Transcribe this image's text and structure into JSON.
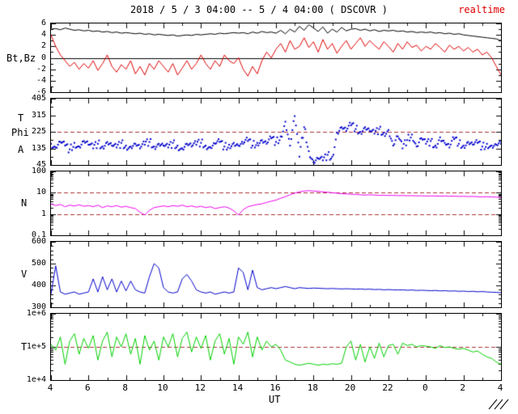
{
  "header": {
    "title": "2018 / 5 / 3  04:00 --  5 / 4  04:00 ( DSCOVR )",
    "realtime_label": "realtime"
  },
  "colors": {
    "bt": "#000000",
    "bz": "#dd0000",
    "phi": "#0000cc",
    "n": "#ee00ee",
    "v": "#0000cc",
    "t": "#00d000",
    "ref": "#aa3333",
    "axis": "#000000",
    "realtime": "#dd0000"
  },
  "chart_data": {
    "type": "line",
    "title": "2018 / 5 / 3 04:00 -- 5 / 4 04:00 ( DSCOVR )",
    "source_label": "DSCOVR",
    "xlabel": "UT",
    "x_start": 4,
    "x_step": 0.25,
    "x_end": 28,
    "xticks": [
      {
        "v": 4,
        "label": "4"
      },
      {
        "v": 6,
        "label": "6"
      },
      {
        "v": 8,
        "label": "8"
      },
      {
        "v": 10,
        "label": "10"
      },
      {
        "v": 12,
        "label": "12"
      },
      {
        "v": 14,
        "label": "14"
      },
      {
        "v": 16,
        "label": "16"
      },
      {
        "v": 18,
        "label": "18"
      },
      {
        "v": 20,
        "label": "20"
      },
      {
        "v": 22,
        "label": "22"
      },
      {
        "v": 24,
        "label": "0"
      },
      {
        "v": 26,
        "label": "2"
      },
      {
        "v": 28,
        "label": "4"
      }
    ],
    "panels": [
      {
        "id": "bt-bz",
        "ylabel": "Bt,Bz",
        "yscale": "linear",
        "ylim": [
          -6,
          6
        ],
        "yminor": 1,
        "zero_line": true,
        "yticks": [
          {
            "v": 6,
            "label": "6"
          },
          {
            "v": 4,
            "label": "4"
          },
          {
            "v": 2,
            "label": "2"
          },
          {
            "v": 0,
            "label": "0"
          },
          {
            "v": -2,
            "label": "-2"
          },
          {
            "v": -4,
            "label": "-4"
          },
          {
            "v": -6,
            "label": "-6"
          }
        ],
        "series": [
          {
            "name": "Bt",
            "color_key": "bt",
            "style": "line",
            "values": [
              5.0,
              5.1,
              4.9,
              5.2,
              5.0,
              4.8,
              4.9,
              4.7,
              4.8,
              4.6,
              4.7,
              4.5,
              4.6,
              4.4,
              4.5,
              4.3,
              4.4,
              4.3,
              4.2,
              4.3,
              4.1,
              4.2,
              4.0,
              4.1,
              4.0,
              3.9,
              4.0,
              3.8,
              3.9,
              4.0,
              3.9,
              4.1,
              4.0,
              4.1,
              4.2,
              4.1,
              4.3,
              4.2,
              4.3,
              4.4,
              4.3,
              4.4,
              4.2,
              4.5,
              4.3,
              4.6,
              4.4,
              4.5,
              4.3,
              4.8,
              4.2,
              5.0,
              4.5,
              5.5,
              4.8,
              5.8,
              5.2,
              4.6,
              5.4,
              4.3,
              5.0,
              4.5,
              5.3,
              4.7,
              5.0,
              5.1,
              4.8,
              5.0,
              4.7,
              4.9,
              4.6,
              4.8,
              4.7,
              4.8,
              4.6,
              4.7,
              4.5,
              4.6,
              4.4,
              4.5,
              4.4,
              4.5,
              4.3,
              4.4,
              4.2,
              4.3,
              4.1,
              4.2,
              4.0,
              3.9,
              3.8,
              3.7,
              3.6,
              3.5,
              3.4,
              3.3,
              3.0
            ]
          },
          {
            "name": "Bz",
            "color_key": "bz",
            "style": "line",
            "values": [
              4.0,
              2.0,
              0.5,
              -0.5,
              -1.5,
              -0.8,
              -2.0,
              -1.0,
              -1.8,
              -0.5,
              -2.2,
              -1.0,
              0.5,
              -1.5,
              -2.5,
              -1.2,
              -2.0,
              -0.5,
              -2.8,
              -1.5,
              -3.0,
              -1.0,
              -2.0,
              -0.5,
              -1.5,
              -2.5,
              -1.0,
              -3.0,
              -1.8,
              -0.5,
              -2.0,
              -1.0,
              0.5,
              -1.0,
              -2.0,
              -0.5,
              -1.5,
              0.5,
              -0.5,
              -1.0,
              0.0,
              -2.0,
              -3.2,
              -1.5,
              -2.8,
              -0.5,
              1.0,
              0.0,
              1.5,
              2.5,
              1.0,
              3.0,
              1.5,
              2.0,
              3.5,
              1.8,
              2.8,
              1.0,
              3.2,
              1.5,
              2.5,
              0.8,
              2.0,
              3.0,
              1.5,
              2.5,
              3.5,
              2.0,
              3.0,
              2.2,
              1.5,
              2.8,
              2.0,
              1.0,
              2.5,
              1.5,
              2.8,
              1.8,
              2.2,
              1.2,
              2.0,
              1.5,
              2.5,
              1.8,
              1.0,
              2.2,
              1.5,
              2.0,
              1.2,
              1.8,
              1.0,
              1.5,
              0.5,
              1.0,
              0.0,
              -1.5,
              -3.0
            ]
          }
        ]
      },
      {
        "id": "phi",
        "ylabel_lines": [
          "T",
          "Phi",
          "A"
        ],
        "yscale": "linear",
        "ylim": [
          45,
          405
        ],
        "yminor": 45,
        "ref_lines": [
          225
        ],
        "yticks": [
          {
            "v": 405,
            "label": "405"
          },
          {
            "v": 315,
            "label": "315"
          },
          {
            "v": 225,
            "label": "225"
          },
          {
            "v": 135,
            "label": "135"
          },
          {
            "v": 45,
            "label": "45"
          }
        ],
        "series": [
          {
            "name": "Phi",
            "color_key": "phi",
            "style": "dots",
            "values": [
              160,
              140,
              170,
              150,
              130,
              165,
              145,
              175,
              155,
              135,
              160,
              145,
              170,
              150,
              140,
              165,
              150,
              145,
              160,
              135,
              155,
              170,
              145,
              160,
              150,
              140,
              165,
              150,
              135,
              160,
              145,
              155,
              165,
              150,
              140,
              160,
              170,
              145,
              155,
              165,
              150,
              160,
              175,
              150,
              165,
              180,
              160,
              190,
              170,
              200,
              280,
              150,
              310,
              90,
              250,
              120,
              60,
              80,
              70,
              100,
              90,
              220,
              250,
              230,
              260,
              240,
              225,
              250,
              230,
              215,
              240,
              220,
              235,
              150,
              200,
              135,
              180,
              210,
              145,
              190,
              160,
              175,
              150,
              195,
              165,
              140,
              185,
              160,
              150,
              170,
              155,
              165,
              145,
              160,
              150,
              155,
              160
            ]
          }
        ]
      },
      {
        "id": "density",
        "ylabel": "N",
        "yscale": "log",
        "ylim": [
          0.1,
          100
        ],
        "ref_lines": [
          1,
          10
        ],
        "yticks": [
          {
            "v": 100,
            "label": "100"
          },
          {
            "v": 10,
            "label": "10"
          },
          {
            "v": 1,
            "label": "1"
          },
          {
            "v": 0.1,
            "label": "0.1"
          }
        ],
        "series": [
          {
            "name": "N",
            "color_key": "n",
            "style": "line",
            "values": [
              3.0,
              2.5,
              2.8,
              2.2,
              2.6,
              2.4,
              2.7,
              2.3,
              2.5,
              2.2,
              2.6,
              2.0,
              2.4,
              2.2,
              2.5,
              2.1,
              2.3,
              2.0,
              1.8,
              1.2,
              0.9,
              1.5,
              2.0,
              2.2,
              2.4,
              2.2,
              2.5,
              2.3,
              2.6,
              2.2,
              2.4,
              2.1,
              2.3,
              2.0,
              2.2,
              1.8,
              2.0,
              2.2,
              1.9,
              1.4,
              0.9,
              1.6,
              2.2,
              2.5,
              2.8,
              3.0,
              3.5,
              4.0,
              4.5,
              5.5,
              6.5,
              8.0,
              9.5,
              11.0,
              12.0,
              12.5,
              12.0,
              11.5,
              11.0,
              10.5,
              10.0,
              9.5,
              9.0,
              8.8,
              8.5,
              8.3,
              8.0,
              7.8,
              8.0,
              7.8,
              7.5,
              7.6,
              7.4,
              7.5,
              7.3,
              7.4,
              7.2,
              7.3,
              7.1,
              7.2,
              7.0,
              7.1,
              7.0,
              6.9,
              7.0,
              6.8,
              6.9,
              6.7,
              6.8,
              6.6,
              6.7,
              6.5,
              6.4,
              6.5,
              6.3,
              6.2,
              6.0
            ]
          }
        ]
      },
      {
        "id": "velocity",
        "ylabel": "V",
        "yscale": "linear",
        "ylim": [
          300,
          600
        ],
        "yminor": 20,
        "yticks": [
          {
            "v": 600,
            "label": "600"
          },
          {
            "v": 500,
            "label": "500"
          },
          {
            "v": 400,
            "label": "400"
          },
          {
            "v": 300,
            "label": "300"
          }
        ],
        "series": [
          {
            "name": "V",
            "color_key": "v",
            "style": "line",
            "values": [
              360,
              490,
              370,
              360,
              365,
              370,
              360,
              365,
              370,
              430,
              370,
              440,
              380,
              430,
              370,
              420,
              375,
              420,
              380,
              370,
              365,
              440,
              500,
              480,
              390,
              370,
              365,
              370,
              430,
              450,
              420,
              380,
              370,
              365,
              370,
              360,
              365,
              370,
              365,
              370,
              480,
              460,
              380,
              470,
              390,
              380,
              385,
              390,
              385,
              390,
              395,
              390,
              385,
              390,
              388,
              386,
              388,
              387,
              386,
              385,
              386,
              385,
              384,
              385,
              384,
              383,
              384,
              382,
              383,
              381,
              382,
              380,
              381,
              380,
              379,
              380,
              378,
              379,
              377,
              378,
              377,
              376,
              377,
              375,
              376,
              374,
              375,
              373,
              374,
              372,
              373,
              371,
              372,
              370,
              369,
              368,
              367
            ]
          }
        ]
      },
      {
        "id": "temperature",
        "ylabel": "T",
        "yscale": "log",
        "ylim": [
          10000,
          1000000
        ],
        "ref_lines": [
          100000
        ],
        "yticks": [
          {
            "v": 1000000,
            "label": "1e+6"
          },
          {
            "v": 100000,
            "label": "1e+5"
          },
          {
            "v": 10000,
            "label": "1e+4"
          }
        ],
        "series": [
          {
            "name": "T",
            "color_key": "t",
            "style": "line",
            "values": [
              120000,
              80000,
              200000,
              30000,
              150000,
              250000,
              60000,
              180000,
              90000,
              220000,
              40000,
              150000,
              280000,
              50000,
              200000,
              100000,
              250000,
              60000,
              180000,
              30000,
              220000,
              80000,
              150000,
              40000,
              200000,
              100000,
              250000,
              50000,
              180000,
              280000,
              70000,
              200000,
              90000,
              220000,
              40000,
              150000,
              250000,
              60000,
              180000,
              30000,
              200000,
              120000,
              280000,
              50000,
              200000,
              80000,
              150000,
              100000,
              120000,
              80000,
              40000,
              35000,
              30000,
              28000,
              30000,
              32000,
              30000,
              28000,
              30000,
              29000,
              31000,
              30000,
              32000,
              100000,
              150000,
              40000,
              120000,
              35000,
              100000,
              45000,
              130000,
              50000,
              110000,
              120000,
              60000,
              130000,
              110000,
              120000,
              100000,
              110000,
              105000,
              100000,
              90000,
              110000,
              95000,
              100000,
              90000,
              85000,
              90000,
              80000,
              70000,
              75000,
              60000,
              50000,
              45000,
              35000,
              30000
            ]
          }
        ]
      }
    ]
  }
}
